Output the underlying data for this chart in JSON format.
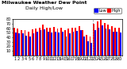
{
  "title": "Milwaukee Weather Dew Point",
  "subtitle": "Daily High/Low",
  "background_color": "#ffffff",
  "bar_width": 0.4,
  "legend_labels": [
    "High",
    "Low"
  ],
  "high_color": "#ff0000",
  "low_color": "#0000ff",
  "x_labels": [
    "1",
    "2",
    "3",
    "4",
    "5",
    "6",
    "7",
    "8",
    "9",
    "10",
    "11",
    "12",
    "13",
    "14",
    "15",
    "16",
    "17",
    "18",
    "19",
    "20",
    "21",
    "22",
    "23",
    "24",
    "25",
    "26",
    "27",
    "28",
    "29",
    "30"
  ],
  "high_values": [
    62,
    60,
    55,
    55,
    52,
    58,
    60,
    62,
    68,
    62,
    62,
    63,
    60,
    62,
    55,
    60,
    62,
    62,
    65,
    55,
    45,
    42,
    70,
    75,
    78,
    72,
    68,
    65,
    62,
    62
  ],
  "low_values": [
    50,
    48,
    48,
    44,
    42,
    48,
    52,
    55,
    58,
    52,
    50,
    52,
    50,
    52,
    42,
    48,
    52,
    54,
    55,
    42,
    32,
    28,
    55,
    62,
    66,
    60,
    58,
    52,
    52,
    50
  ],
  "ylim": [
    0,
    80
  ],
  "ytick_values": [
    10,
    20,
    30,
    40,
    50,
    60,
    70,
    80
  ],
  "ytick_labels": [
    "10",
    "20",
    "30",
    "40",
    "50",
    "60",
    "70",
    "80"
  ],
  "dashed_vline_x": 21.5,
  "title_fontsize": 4.5,
  "tick_fontsize": 3.5,
  "legend_fontsize": 3.5
}
